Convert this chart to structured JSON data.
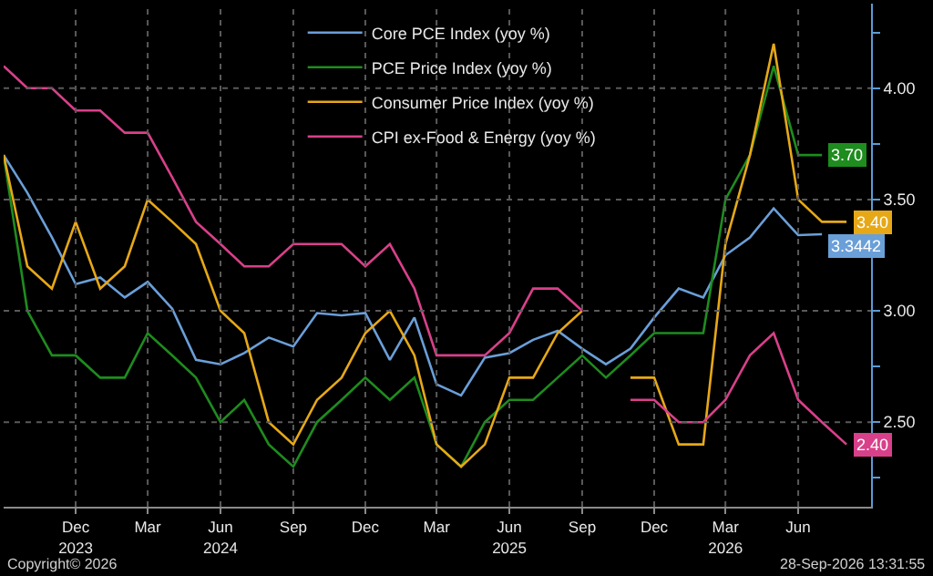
{
  "chart_data": {
    "type": "line",
    "x": [
      "2023-09",
      "2023-10",
      "2023-11",
      "2023-12",
      "2024-01",
      "2024-02",
      "2024-03",
      "2024-04",
      "2024-05",
      "2024-06",
      "2024-07",
      "2024-08",
      "2024-09",
      "2024-10",
      "2024-11",
      "2024-12",
      "2025-01",
      "2025-02",
      "2025-03",
      "2025-04",
      "2025-05",
      "2025-06",
      "2025-07",
      "2025-08",
      "2025-09",
      "2025-10",
      "2025-11",
      "2025-12",
      "2026-01",
      "2026-02",
      "2026-03",
      "2026-04",
      "2026-05",
      "2026-06",
      "2026-07",
      "2026-08"
    ],
    "series": [
      {
        "name": "Core PCE Index (yoy %)",
        "color": "#6a9fd8",
        "values": [
          3.7,
          3.53,
          3.33,
          3.12,
          3.15,
          3.06,
          3.13,
          3.01,
          2.78,
          2.76,
          2.81,
          2.88,
          2.84,
          2.99,
          2.98,
          2.99,
          2.78,
          2.97,
          2.67,
          2.62,
          2.79,
          2.81,
          2.87,
          2.91,
          2.83,
          2.76,
          2.83,
          2.97,
          3.1,
          3.06,
          3.25,
          3.33,
          3.46,
          3.34,
          3.3442,
          null
        ],
        "value_labels": [
          null,
          null,
          null,
          null,
          null,
          null,
          null,
          null,
          null,
          null,
          null,
          null,
          null,
          null,
          null,
          null,
          null,
          null,
          null,
          null,
          null,
          null,
          null,
          null,
          null,
          null,
          null,
          null,
          null,
          null,
          null,
          null,
          null,
          null,
          "3.3442",
          null
        ]
      },
      {
        "name": "PCE Price Index (yoy %)",
        "color": "#1e8c1e",
        "values": [
          3.7,
          3.0,
          2.8,
          2.8,
          2.7,
          2.7,
          2.9,
          2.8,
          2.7,
          2.5,
          2.6,
          2.4,
          2.3,
          2.5,
          2.6,
          2.7,
          2.6,
          2.7,
          2.4,
          2.3,
          2.5,
          2.6,
          2.6,
          2.7,
          2.8,
          2.7,
          2.8,
          2.9,
          2.9,
          2.9,
          3.5,
          3.7,
          4.1,
          3.7,
          3.7,
          null
        ],
        "value_labels": [
          null,
          null,
          null,
          null,
          null,
          null,
          null,
          null,
          null,
          null,
          null,
          null,
          null,
          null,
          null,
          null,
          null,
          null,
          null,
          null,
          null,
          null,
          null,
          null,
          null,
          null,
          null,
          null,
          null,
          null,
          null,
          null,
          null,
          null,
          "3.70",
          null
        ]
      },
      {
        "name": "Consumer Price Index (yoy %)",
        "color": "#e6a817",
        "values": [
          3.7,
          3.2,
          3.1,
          3.4,
          3.1,
          3.2,
          3.5,
          3.4,
          3.3,
          3.0,
          2.9,
          2.5,
          2.4,
          2.6,
          2.7,
          2.9,
          3.0,
          2.8,
          2.4,
          2.3,
          2.4,
          2.7,
          2.7,
          2.9,
          3.0,
          null,
          2.7,
          2.7,
          2.4,
          2.4,
          3.3,
          3.7,
          4.2,
          3.5,
          3.4,
          3.4
        ],
        "value_labels": [
          null,
          null,
          null,
          null,
          null,
          null,
          null,
          null,
          null,
          null,
          null,
          null,
          null,
          null,
          null,
          null,
          null,
          null,
          null,
          null,
          null,
          null,
          null,
          null,
          null,
          null,
          null,
          null,
          null,
          null,
          null,
          null,
          null,
          null,
          null,
          "3.40"
        ]
      },
      {
        "name": "CPI ex-Food & Energy (yoy %)",
        "color": "#d9408a",
        "values": [
          4.1,
          4.0,
          4.0,
          3.9,
          3.9,
          3.8,
          3.8,
          3.6,
          3.4,
          3.3,
          3.2,
          3.2,
          3.3,
          3.3,
          3.3,
          3.2,
          3.3,
          3.1,
          2.8,
          2.8,
          2.8,
          2.9,
          3.1,
          3.1,
          3.0,
          null,
          2.6,
          2.6,
          2.5,
          2.5,
          2.6,
          2.8,
          2.9,
          2.6,
          2.5,
          2.4
        ],
        "value_labels": [
          null,
          null,
          null,
          null,
          null,
          null,
          null,
          null,
          null,
          null,
          null,
          null,
          null,
          null,
          null,
          null,
          null,
          null,
          null,
          null,
          null,
          null,
          null,
          null,
          null,
          null,
          null,
          null,
          null,
          null,
          null,
          null,
          null,
          null,
          null,
          "2.40"
        ]
      }
    ],
    "xlim": [
      "2023-09",
      "2026-09"
    ],
    "xticks": [
      {
        "value": "2023-12",
        "label": "Dec\n2023"
      },
      {
        "value": "2024-03",
        "label": "Mar"
      },
      {
        "value": "2024-06",
        "label": "Jun\n2024"
      },
      {
        "value": "2024-09",
        "label": "Sep"
      },
      {
        "value": "2024-12",
        "label": "Dec"
      },
      {
        "value": "2025-03",
        "label": "Mar"
      },
      {
        "value": "2025-06",
        "label": "Jun\n2025"
      },
      {
        "value": "2025-09",
        "label": "Sep"
      },
      {
        "value": "2025-12",
        "label": "Dec"
      },
      {
        "value": "2026-03",
        "label": "Mar\n2026"
      },
      {
        "value": "2026-06",
        "label": "Jun"
      }
    ],
    "ylim": [
      2.12,
      4.38
    ],
    "yticks": [
      {
        "value": 2.25,
        "label": null
      },
      {
        "value": 2.5,
        "label": "2.50"
      },
      {
        "value": 2.75,
        "label": null
      },
      {
        "value": 3,
        "label": "3.00"
      },
      {
        "value": 3.25,
        "label": null
      },
      {
        "value": 3.5,
        "label": "3.50"
      },
      {
        "value": 3.75,
        "label": null
      },
      {
        "value": 4,
        "label": "4.00"
      },
      {
        "value": 4.25,
        "label": null
      }
    ],
    "grid": true,
    "legend": "top",
    "marker": "none",
    "line_style": "solid",
    "annotations": [
      "Copyright© 2026",
      "28-Sep-2026 13:31:55"
    ]
  }
}
